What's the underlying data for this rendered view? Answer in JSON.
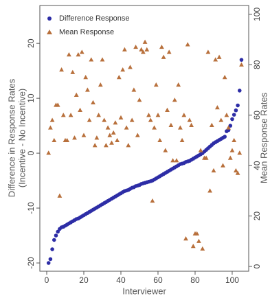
{
  "chart_data": {
    "type": "scatter",
    "xlabel": "Interviewer",
    "ylabel": [
      "Difference in Response Rates",
      "(Incentive - No Incentive)"
    ],
    "y2label": "Mean Response Rates",
    "x": [
      1,
      2,
      3,
      4,
      5,
      6,
      7,
      8,
      9,
      10,
      11,
      12,
      13,
      14,
      15,
      16,
      17,
      18,
      19,
      20,
      21,
      22,
      23,
      24,
      25,
      26,
      27,
      28,
      29,
      30,
      31,
      32,
      33,
      34,
      35,
      36,
      37,
      38,
      39,
      40,
      41,
      42,
      43,
      44,
      45,
      46,
      47,
      48,
      49,
      50,
      51,
      52,
      53,
      54,
      55,
      56,
      57,
      58,
      59,
      60,
      61,
      62,
      63,
      64,
      65,
      66,
      67,
      68,
      69,
      70,
      71,
      72,
      73,
      74,
      75,
      76,
      77,
      78,
      79,
      80,
      81,
      82,
      83,
      84,
      85,
      86,
      87,
      88,
      89,
      90,
      91,
      92,
      93,
      94,
      95,
      96,
      97,
      98,
      99,
      100,
      101,
      102,
      103,
      104,
      105
    ],
    "series": [
      {
        "name": "Difference Response",
        "color": "#2d2da6",
        "marker": "circle",
        "values": [
          -20.0,
          -19.3,
          -17.5,
          -15.8,
          -15.0,
          -14.3,
          -13.8,
          -13.5,
          -13.4,
          -13.2,
          -13.0,
          -12.8,
          -12.6,
          -12.4,
          -12.2,
          -12.0,
          -11.9,
          -11.7,
          -11.5,
          -11.3,
          -11.1,
          -10.9,
          -10.7,
          -10.5,
          -10.3,
          -10.1,
          -9.9,
          -9.7,
          -9.5,
          -9.3,
          -9.1,
          -8.9,
          -8.7,
          -8.5,
          -8.3,
          -8.1,
          -7.9,
          -7.7,
          -7.5,
          -7.3,
          -7.1,
          -6.9,
          -6.8,
          -6.7,
          -6.5,
          -6.3,
          -6.2,
          -6.0,
          -5.9,
          -5.8,
          -5.6,
          -5.5,
          -5.4,
          -5.3,
          -5.2,
          -5.1,
          -5.0,
          -4.8,
          -4.6,
          -4.4,
          -4.2,
          -4.0,
          -3.8,
          -3.6,
          -3.4,
          -3.2,
          -3.0,
          -2.8,
          -2.6,
          -2.4,
          -2.2,
          -2.0,
          -1.9,
          -1.8,
          -1.6,
          -1.5,
          -1.4,
          -1.2,
          -1.0,
          -0.8,
          -0.6,
          -0.4,
          -0.2,
          0.0,
          0.3,
          0.6,
          0.9,
          1.2,
          1.5,
          1.8,
          2.0,
          2.2,
          2.4,
          2.6,
          2.8,
          3.0,
          4.0,
          4.2,
          5.0,
          6.2,
          7.0,
          7.8,
          8.7,
          11.4,
          17.0
        ]
      },
      {
        "name": "Mean Response",
        "color": "#b8703c",
        "marker": "triangle",
        "axis": "y2",
        "values": [
          45,
          55,
          58,
          50,
          64,
          64,
          28,
          78,
          60,
          50,
          50,
          84,
          60,
          77,
          51,
          68,
          84,
          62,
          85,
          52,
          75,
          70,
          58,
          82,
          65,
          48,
          51,
          60,
          72,
          82,
          58,
          48,
          55,
          52,
          49,
          53,
          57,
          50,
          75,
          59,
          78,
          86,
          55,
          48,
          79,
          58,
          70,
          87,
          52,
          66,
          86,
          85,
          89,
          86,
          60,
          58,
          26,
          55,
          72,
          60,
          50,
          87,
          83,
          46,
          62,
          85,
          56,
          42,
          66,
          42,
          72,
          55,
          50,
          60,
          11,
          88,
          58,
          56,
          8,
          13,
          13,
          10,
          46,
          7,
          43,
          43,
          85,
          30,
          56,
          38,
          82,
          63,
          83,
          58,
          40,
          75,
          60,
          55,
          43,
          46,
          50,
          38,
          37,
          45,
          80
        ]
      }
    ],
    "xlim": [
      -3.7,
      108.9
    ],
    "xticks": [
      0,
      20,
      40,
      60,
      80,
      100
    ],
    "ylim": [
      -21.5,
      26.9
    ],
    "yticks": [
      -20,
      -10,
      0,
      10,
      20
    ],
    "y2lim": [
      -1.9,
      103.5
    ],
    "y2ticks": [
      0,
      20,
      40,
      60,
      80,
      100
    ],
    "legend": "upper left"
  }
}
